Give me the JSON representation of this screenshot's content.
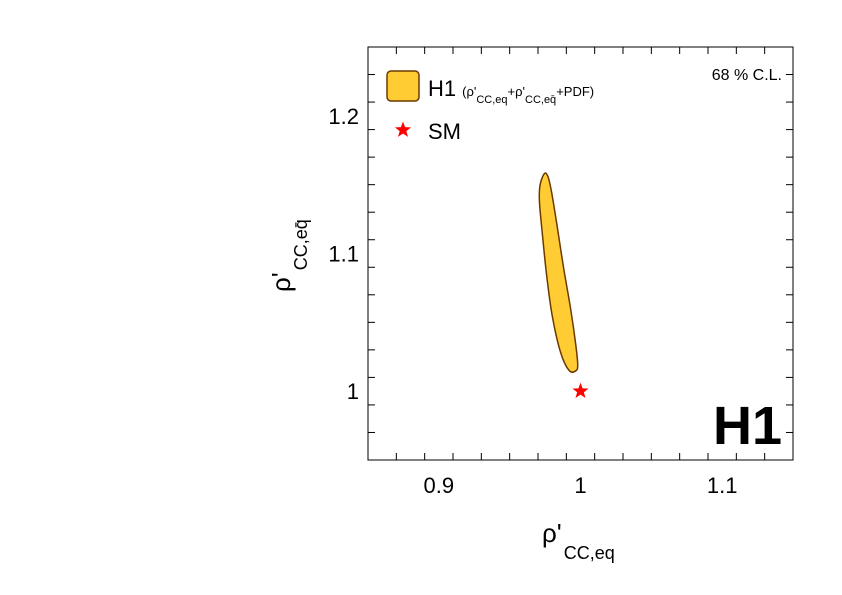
{
  "chart_data": {
    "type": "scatter",
    "xlim": [
      0.85,
      1.15
    ],
    "ylim": [
      0.95,
      1.25
    ],
    "x_ticks": [
      {
        "value": 0.9,
        "label": "0.9"
      },
      {
        "value": 1.0,
        "label": "1"
      },
      {
        "value": 1.1,
        "label": "1.1"
      }
    ],
    "y_ticks": [
      {
        "value": 1.0,
        "label": "1"
      },
      {
        "value": 1.1,
        "label": "1.1"
      },
      {
        "value": 1.2,
        "label": "1.2"
      }
    ],
    "xlabel": {
      "main": "ρ'",
      "sub": "CC,eq"
    },
    "ylabel": {
      "main": "ρ'",
      "sub": "CC,eq̄"
    },
    "annotation": "68 % C.L.",
    "watermark": "H1",
    "legend": {
      "placement": "top-left",
      "entries": [
        {
          "name": "H1",
          "detail_parts": [
            "(ρ'",
            "CC,eq",
            "+ρ'",
            "CC,eq̄",
            "+PDF)"
          ],
          "marker": "filled-area",
          "color": "#FFCC33",
          "edge": "#6B3A00"
        },
        {
          "name": "SM",
          "marker": "star",
          "color": "#FF0000"
        }
      ]
    },
    "series": [
      {
        "name": "H1",
        "kind": "contour",
        "color": "#FFCC33",
        "edge": "#6B3A00",
        "points": [
          [
            0.9745,
            1.158
          ],
          [
            0.977,
            1.156
          ],
          [
            0.9795,
            1.145
          ],
          [
            0.9835,
            1.12
          ],
          [
            0.988,
            1.09
          ],
          [
            0.993,
            1.06
          ],
          [
            0.9965,
            1.035
          ],
          [
            0.998,
            1.02
          ],
          [
            0.997,
            1.015
          ],
          [
            0.992,
            1.015
          ],
          [
            0.986,
            1.028
          ],
          [
            0.98,
            1.055
          ],
          [
            0.976,
            1.085
          ],
          [
            0.973,
            1.115
          ],
          [
            0.971,
            1.138
          ],
          [
            0.9715,
            1.15
          ]
        ]
      },
      {
        "name": "SM",
        "kind": "marker",
        "color": "#FF0000",
        "points": [
          [
            1.0,
            1.0
          ]
        ]
      }
    ]
  }
}
